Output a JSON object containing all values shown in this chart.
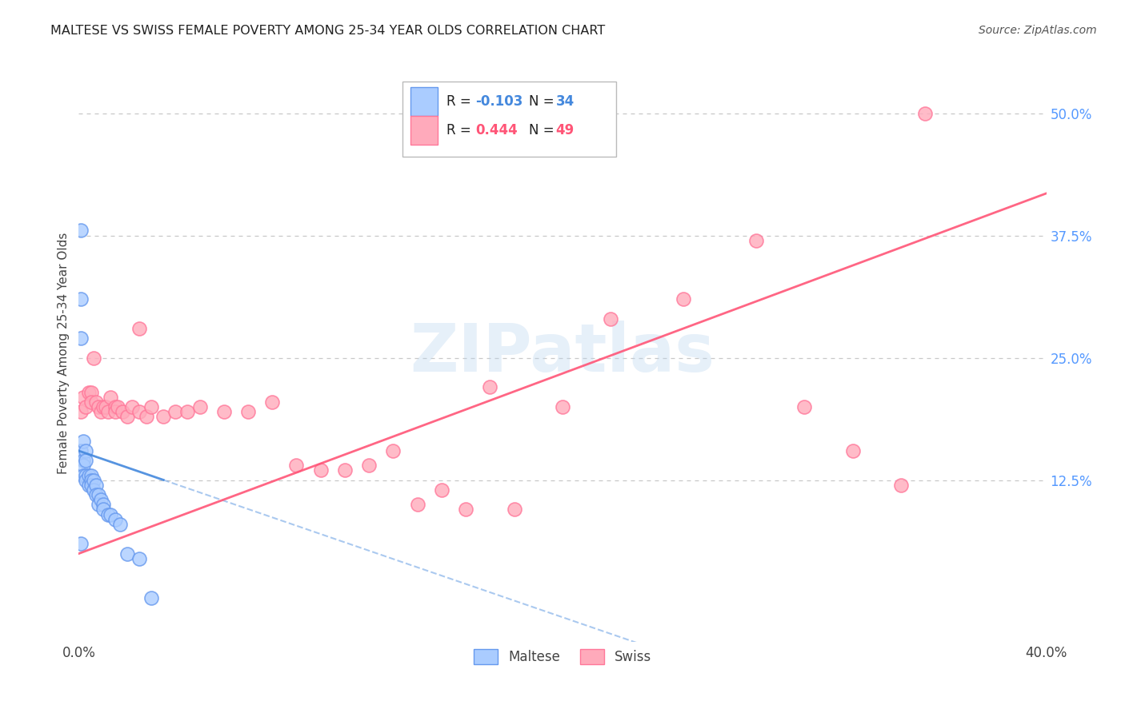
{
  "title": "MALTESE VS SWISS FEMALE POVERTY AMONG 25-34 YEAR OLDS CORRELATION CHART",
  "source": "Source: ZipAtlas.com",
  "ylabel": "Female Poverty Among 25-34 Year Olds",
  "xlim": [
    0.0,
    0.4
  ],
  "ylim": [
    -0.04,
    0.55
  ],
  "xticks": [
    0.0,
    0.05,
    0.1,
    0.15,
    0.2,
    0.25,
    0.3,
    0.35,
    0.4
  ],
  "xticklabels": [
    "0.0%",
    "",
    "",
    "",
    "",
    "",
    "",
    "",
    "40.0%"
  ],
  "yticks_right": [
    0.0,
    0.125,
    0.25,
    0.375,
    0.5
  ],
  "ytick_labels_right": [
    "",
    "12.5%",
    "25.0%",
    "37.5%",
    "50.0%"
  ],
  "grid_color": "#c8c8c8",
  "background_color": "#ffffff",
  "maltese_fill": "#aaccff",
  "swiss_fill": "#ffaabb",
  "maltese_edge": "#6699ee",
  "swiss_edge": "#ff7799",
  "watermark": "ZIPatlas",
  "maltese_line_color": "#4488dd",
  "swiss_line_color": "#ff5577",
  "maltese_line_intercept": 0.155,
  "maltese_line_slope": -0.85,
  "swiss_line_intercept": 0.05,
  "swiss_line_slope": 0.92,
  "maltese_x": [
    0.001,
    0.001,
    0.001,
    0.001,
    0.001,
    0.002,
    0.002,
    0.002,
    0.002,
    0.003,
    0.003,
    0.003,
    0.003,
    0.004,
    0.004,
    0.005,
    0.005,
    0.005,
    0.006,
    0.006,
    0.007,
    0.007,
    0.008,
    0.008,
    0.009,
    0.01,
    0.01,
    0.012,
    0.013,
    0.015,
    0.017,
    0.02,
    0.025,
    0.03
  ],
  "maltese_y": [
    0.38,
    0.31,
    0.27,
    0.155,
    0.06,
    0.165,
    0.145,
    0.14,
    0.13,
    0.155,
    0.145,
    0.13,
    0.125,
    0.13,
    0.12,
    0.13,
    0.125,
    0.12,
    0.125,
    0.115,
    0.12,
    0.11,
    0.11,
    0.1,
    0.105,
    0.1,
    0.095,
    0.09,
    0.09,
    0.085,
    0.08,
    0.05,
    0.045,
    0.005
  ],
  "swiss_x": [
    0.001,
    0.002,
    0.003,
    0.004,
    0.005,
    0.005,
    0.006,
    0.007,
    0.008,
    0.009,
    0.01,
    0.011,
    0.012,
    0.013,
    0.015,
    0.015,
    0.016,
    0.018,
    0.02,
    0.022,
    0.025,
    0.025,
    0.028,
    0.03,
    0.035,
    0.04,
    0.045,
    0.05,
    0.06,
    0.07,
    0.08,
    0.09,
    0.1,
    0.11,
    0.12,
    0.13,
    0.14,
    0.15,
    0.16,
    0.18,
    0.2,
    0.22,
    0.25,
    0.28,
    0.3,
    0.32,
    0.34,
    0.35,
    0.17
  ],
  "swiss_y": [
    0.195,
    0.21,
    0.2,
    0.215,
    0.215,
    0.205,
    0.25,
    0.205,
    0.2,
    0.195,
    0.2,
    0.2,
    0.195,
    0.21,
    0.2,
    0.195,
    0.2,
    0.195,
    0.19,
    0.2,
    0.195,
    0.28,
    0.19,
    0.2,
    0.19,
    0.195,
    0.195,
    0.2,
    0.195,
    0.195,
    0.205,
    0.14,
    0.135,
    0.135,
    0.14,
    0.155,
    0.1,
    0.115,
    0.095,
    0.095,
    0.2,
    0.29,
    0.31,
    0.37,
    0.2,
    0.155,
    0.12,
    0.5,
    0.22
  ]
}
